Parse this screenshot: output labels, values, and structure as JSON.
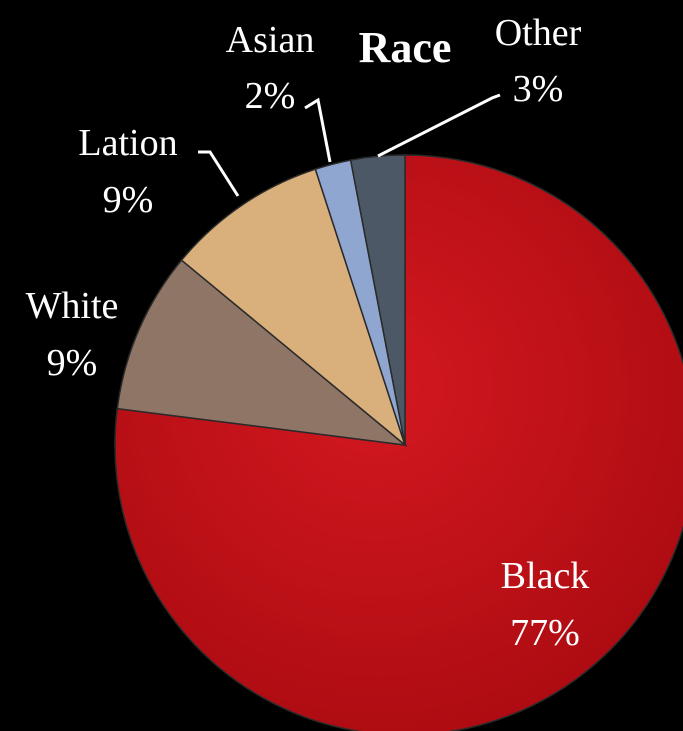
{
  "chart_data": {
    "type": "pie",
    "title": "Race",
    "categories": [
      "Black",
      "White",
      "Lation",
      "Asian",
      "Other"
    ],
    "values": [
      77,
      9,
      9,
      2,
      3
    ],
    "labels": [
      "77%",
      "9%",
      "9%",
      "2%",
      "3%"
    ],
    "colors": [
      "#c8141a",
      "#8f7565",
      "#d9b07c",
      "#8fa6d0",
      "#4d5866"
    ],
    "start_angle_deg": 0,
    "direction": "clockwise",
    "legend": "none"
  }
}
